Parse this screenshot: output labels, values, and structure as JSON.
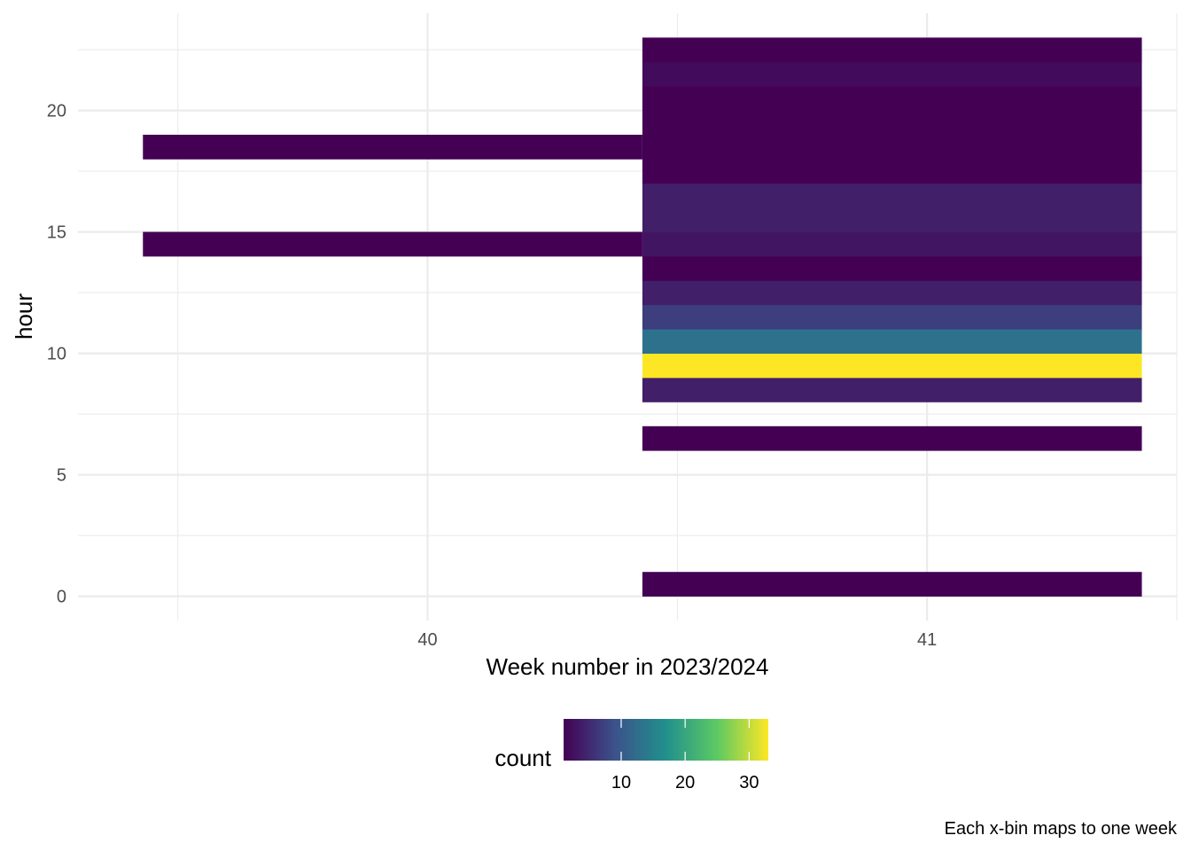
{
  "chart_data": {
    "type": "heatmap",
    "title": "",
    "xlabel": "Week number in 2023/2024",
    "ylabel": "hour",
    "caption": "Each x-bin maps to one week",
    "xlim": [
      39.3,
      41.5
    ],
    "ylim": [
      -1,
      24
    ],
    "x_ticks": [
      40,
      41
    ],
    "x_tick_labels": [
      "40",
      "41"
    ],
    "y_ticks": [
      0,
      5,
      10,
      15,
      20
    ],
    "y_tick_labels": [
      "0",
      "5",
      "10",
      "15",
      "20"
    ],
    "grid": true,
    "bin_width": 1,
    "colorscale": "viridis",
    "colors": {
      "viridis": [
        "#440154",
        "#3b528b",
        "#21908c",
        "#5dc963",
        "#fde725"
      ],
      "grid": "#ebebeb"
    },
    "legend": {
      "title": "count",
      "placement": "bottom",
      "min": 1,
      "max": 33,
      "ticks": [
        10,
        20,
        30
      ],
      "tick_labels": [
        "10",
        "20",
        "30"
      ]
    },
    "cells": [
      {
        "x": 39.93,
        "hour": 14,
        "count": 1
      },
      {
        "x": 39.93,
        "hour": 18,
        "count": 1
      },
      {
        "x": 40.93,
        "hour": 0,
        "count": 1
      },
      {
        "x": 40.93,
        "hour": 6,
        "count": 1
      },
      {
        "x": 40.93,
        "hour": 8,
        "count": 4
      },
      {
        "x": 40.93,
        "hour": 9,
        "count": 33
      },
      {
        "x": 40.93,
        "hour": 10,
        "count": 13
      },
      {
        "x": 40.93,
        "hour": 11,
        "count": 7
      },
      {
        "x": 40.93,
        "hour": 12,
        "count": 4
      },
      {
        "x": 40.93,
        "hour": 13,
        "count": 1
      },
      {
        "x": 40.93,
        "hour": 14,
        "count": 3
      },
      {
        "x": 40.93,
        "hour": 15,
        "count": 4
      },
      {
        "x": 40.93,
        "hour": 16,
        "count": 4
      },
      {
        "x": 40.93,
        "hour": 17,
        "count": 1
      },
      {
        "x": 40.93,
        "hour": 18,
        "count": 1
      },
      {
        "x": 40.93,
        "hour": 19,
        "count": 1
      },
      {
        "x": 40.93,
        "hour": 20,
        "count": 1
      },
      {
        "x": 40.93,
        "hour": 21,
        "count": 2
      },
      {
        "x": 40.93,
        "hour": 22,
        "count": 1
      }
    ]
  }
}
